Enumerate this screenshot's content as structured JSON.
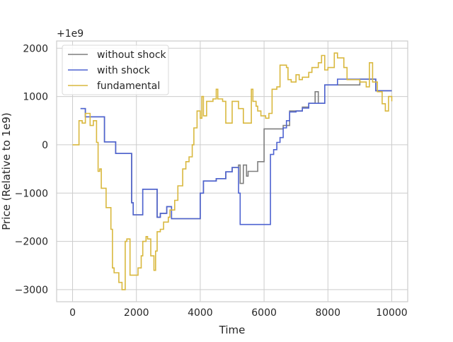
{
  "chart_data": {
    "type": "line",
    "title": "",
    "xlabel": "Time",
    "ylabel": "Price (Relative to 1e9)",
    "offset_text": "+1e9",
    "xlim": [
      -500,
      10500
    ],
    "ylim": [
      -3250,
      2150
    ],
    "xticks": [
      0,
      2000,
      4000,
      6000,
      8000,
      10000
    ],
    "yticks": [
      -3000,
      -2000,
      -1000,
      0,
      1000,
      2000
    ],
    "xtick_labels": [
      "0",
      "2000",
      "4000",
      "6000",
      "8000",
      "10000"
    ],
    "ytick_labels": [
      "−3000",
      "−2000",
      "−1000",
      "0",
      "1000",
      "2000"
    ],
    "grid": true,
    "legend_position": "top-left",
    "series": [
      {
        "name": "without shock",
        "color": "#7f7f7f",
        "step": true,
        "x": [
          250,
          400,
          1000,
          1350,
          1850,
          1900,
          2200,
          2650,
          2750,
          2950,
          3100,
          4000,
          4100,
          4500,
          4800,
          5000,
          5200,
          5250,
          5350,
          5450,
          5500,
          5800,
          6000,
          6400,
          6600,
          6800,
          7200,
          7400,
          7600,
          7700,
          7900,
          8000,
          8300,
          9000,
          9500,
          10000
        ],
        "y": [
          750,
          580,
          60,
          -180,
          -1200,
          -1450,
          -920,
          -1500,
          -1420,
          -1280,
          -1530,
          -1000,
          -750,
          -700,
          -560,
          -470,
          -420,
          -800,
          -420,
          -650,
          -550,
          -350,
          330,
          330,
          400,
          700,
          780,
          860,
          1100,
          860,
          1240,
          1240,
          1240,
          1360,
          1120,
          1120
        ]
      },
      {
        "name": "with shock",
        "color": "#4e63d1",
        "step": true,
        "x": [
          250,
          400,
          1000,
          1350,
          1850,
          1900,
          2200,
          2650,
          2750,
          2950,
          3100,
          4000,
          4100,
          4500,
          4800,
          5000,
          5200,
          5250,
          6200,
          6300,
          6400,
          6500,
          6600,
          6700,
          6800,
          7000,
          7200,
          7400,
          7900,
          8000,
          8300,
          9000,
          9500,
          10000
        ],
        "y": [
          750,
          580,
          60,
          -180,
          -1200,
          -1450,
          -920,
          -1500,
          -1420,
          -1280,
          -1530,
          -1000,
          -750,
          -700,
          -560,
          -470,
          -1000,
          -1650,
          -200,
          -100,
          50,
          150,
          350,
          500,
          680,
          700,
          760,
          860,
          1240,
          1240,
          1360,
          1360,
          1120,
          1120
        ]
      },
      {
        "name": "fundamental",
        "color": "#d9b83e",
        "step": true,
        "x": [
          0,
          200,
          300,
          400,
          550,
          650,
          750,
          800,
          850,
          900,
          1050,
          1200,
          1250,
          1300,
          1450,
          1550,
          1650,
          1700,
          1800,
          2050,
          2150,
          2200,
          2300,
          2350,
          2450,
          2550,
          2600,
          2650,
          2750,
          2850,
          3000,
          3050,
          3200,
          3300,
          3450,
          3550,
          3650,
          3750,
          3800,
          3900,
          4000,
          4050,
          4100,
          4200,
          4400,
          4500,
          4550,
          4700,
          4800,
          5000,
          5200,
          5350,
          5600,
          5650,
          5750,
          5800,
          5900,
          6050,
          6150,
          6250,
          6400,
          6500,
          6700,
          6750,
          6850,
          7000,
          7100,
          7200,
          7400,
          7500,
          7700,
          7800,
          7900,
          8000,
          8200,
          8300,
          8500,
          8600,
          9000,
          9200,
          9300,
          9400,
          9550,
          9700,
          9800,
          9900,
          10000
        ],
        "y": [
          0,
          500,
          450,
          650,
          400,
          500,
          50,
          -550,
          -500,
          -900,
          -1300,
          -1750,
          -2550,
          -2650,
          -2850,
          -3000,
          -2000,
          -1950,
          -2700,
          -2550,
          -2300,
          -2000,
          -1900,
          -1950,
          -2300,
          -2600,
          -2200,
          -1800,
          -1750,
          -1600,
          -1500,
          -1350,
          -1150,
          -850,
          -500,
          -350,
          -250,
          0,
          350,
          700,
          550,
          1000,
          600,
          900,
          950,
          1150,
          950,
          900,
          450,
          900,
          750,
          450,
          1150,
          900,
          800,
          700,
          600,
          550,
          650,
          1150,
          1200,
          1650,
          1600,
          1350,
          1300,
          1450,
          1350,
          1400,
          1500,
          1600,
          1700,
          1850,
          1550,
          1600,
          1900,
          1800,
          1600,
          1350,
          1300,
          1200,
          1700,
          1300,
          1100,
          850,
          700,
          1000,
          900
        ]
      }
    ]
  }
}
